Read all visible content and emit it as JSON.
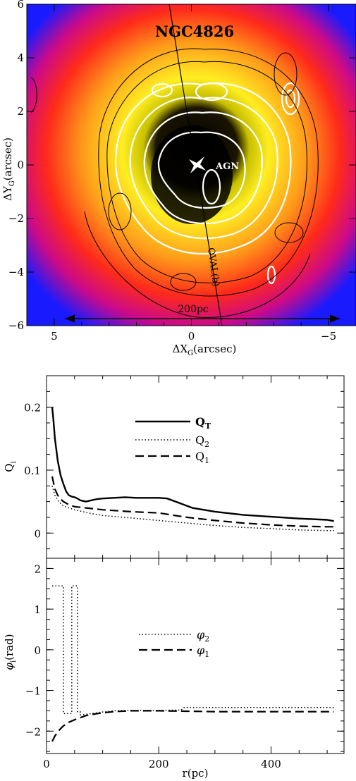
{
  "chart_data": [
    {
      "type": "heatmap",
      "title": "NGC4826",
      "xlabel_main": "ΔX",
      "xlabel_sub": "G",
      "xlabel_unit": "(arcsec)",
      "ylabel_main": "ΔY",
      "ylabel_sub": "G",
      "ylabel_unit": "(arcsec)",
      "xlim": [
        6,
        -6
      ],
      "ylim": [
        -6,
        6
      ],
      "xticks": [
        5,
        0,
        -5
      ],
      "xtick_labels": [
        "5",
        "0",
        "−5"
      ],
      "yticks": [
        -6,
        -4,
        -2,
        0,
        2,
        4,
        6
      ],
      "ytick_labels": [
        "−6",
        "−4",
        "−2",
        "0",
        "2",
        "4",
        "6"
      ],
      "colors": {
        "low": "#1a1aff",
        "mid": "#ff2a1a",
        "high": "#ffee00",
        "peak": "#000000"
      },
      "annotations": [
        {
          "text": "AGN",
          "x": -0.8,
          "y": 0.05
        },
        {
          "text": "OVAL(b)",
          "x": -0.65,
          "y": -4.0
        },
        {
          "text": "200pc",
          "x": 0.2,
          "y": -5.55
        }
      ]
    },
    {
      "type": "line",
      "ylabel_main": "Q",
      "ylabel_sub": "i",
      "xlim": [
        0,
        530
      ],
      "ylim": [
        -0.04,
        0.25
      ],
      "yticks": [
        0,
        0.1,
        0.2
      ],
      "ytick_labels": [
        "0",
        "0.1",
        "0.2"
      ],
      "legend": [
        {
          "main": "Q",
          "sub": "T",
          "style": "solid"
        },
        {
          "main": "Q",
          "sub": "2",
          "style": "dotted"
        },
        {
          "main": "Q",
          "sub": "1",
          "style": "dashed"
        }
      ],
      "series": [
        {
          "style": "solid",
          "x": [
            10,
            12,
            15,
            20,
            25,
            30,
            35,
            40,
            45,
            50,
            55,
            60,
            70,
            80,
            90,
            100,
            120,
            140,
            160,
            180,
            200,
            215,
            230,
            260,
            300,
            350,
            400,
            450,
            500,
            512
          ],
          "y": [
            0.2,
            0.182,
            0.15,
            0.115,
            0.092,
            0.078,
            0.066,
            0.06,
            0.058,
            0.057,
            0.055,
            0.052,
            0.05,
            0.052,
            0.054,
            0.055,
            0.056,
            0.057,
            0.056,
            0.056,
            0.056,
            0.055,
            0.05,
            0.04,
            0.034,
            0.029,
            0.026,
            0.023,
            0.021,
            0.019
          ]
        },
        {
          "style": "dotted",
          "x": [
            10,
            15,
            20,
            25,
            30,
            40,
            50,
            60,
            80,
            100,
            150,
            200,
            250,
            300,
            350,
            400,
            450,
            500,
            512
          ],
          "y": [
            0.075,
            0.06,
            0.052,
            0.047,
            0.043,
            0.04,
            0.037,
            0.035,
            0.031,
            0.028,
            0.024,
            0.02,
            0.016,
            0.012,
            0.009,
            0.007,
            0.005,
            0.004,
            0.004
          ]
        },
        {
          "style": "dashed",
          "x": [
            10,
            15,
            20,
            25,
            30,
            40,
            50,
            60,
            80,
            100,
            150,
            200,
            250,
            300,
            350,
            400,
            450,
            500,
            512
          ],
          "y": [
            0.09,
            0.07,
            0.06,
            0.054,
            0.05,
            0.045,
            0.042,
            0.041,
            0.039,
            0.037,
            0.034,
            0.032,
            0.025,
            0.02,
            0.016,
            0.013,
            0.011,
            0.01,
            0.01
          ]
        }
      ]
    },
    {
      "type": "line",
      "xlabel": "r(pc)",
      "ylabel_main": "φ",
      "ylabel_sub": "i",
      "ylabel_unit": "(rad)",
      "xlim": [
        0,
        530
      ],
      "ylim": [
        -2.55,
        2.25
      ],
      "xticks": [
        0,
        200,
        400
      ],
      "xtick_labels": [
        "0",
        "200",
        "400"
      ],
      "yticks": [
        -2,
        -1,
        0,
        1,
        2
      ],
      "ytick_labels": [
        "−2",
        "−1",
        "0",
        "1",
        "2"
      ],
      "legend": [
        {
          "main": "φ",
          "sub": "2",
          "style": "dotted"
        },
        {
          "main": "φ",
          "sub": "1",
          "style": "dashed"
        }
      ],
      "series": [
        {
          "style": "dotted",
          "x": [
            10,
            30,
            30,
            45,
            45,
            55,
            55,
            60,
            60,
            80,
            100,
            120,
            150,
            200,
            240,
            245,
            300,
            400,
            512
          ],
          "y": [
            1.57,
            1.57,
            -1.57,
            -1.57,
            1.57,
            1.57,
            -1.52,
            -1.52,
            -1.6,
            -1.57,
            -1.53,
            -1.5,
            -1.49,
            -1.49,
            -1.48,
            -1.42,
            -1.42,
            -1.42,
            -1.42
          ]
        },
        {
          "style": "dashed",
          "x": [
            10,
            15,
            20,
            25,
            30,
            40,
            50,
            60,
            70,
            80,
            100,
            120,
            150,
            200,
            250,
            300,
            400,
            512
          ],
          "y": [
            -2.25,
            -2.12,
            -2.02,
            -1.94,
            -1.87,
            -1.78,
            -1.72,
            -1.67,
            -1.62,
            -1.59,
            -1.55,
            -1.52,
            -1.5,
            -1.5,
            -1.51,
            -1.52,
            -1.52,
            -1.52
          ]
        }
      ]
    }
  ]
}
